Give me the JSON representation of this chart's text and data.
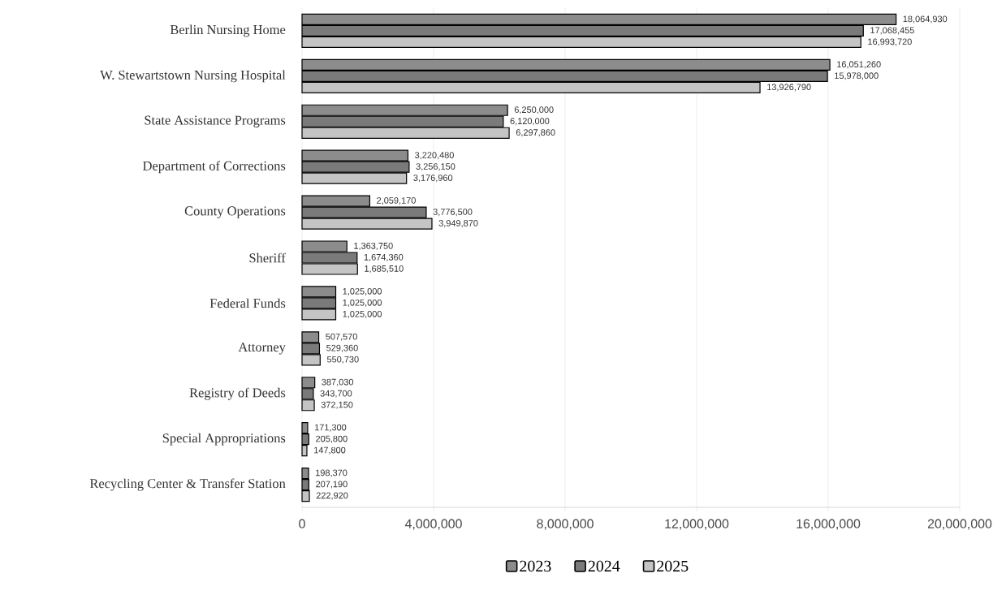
{
  "chart_data": {
    "type": "bar",
    "orientation": "horizontal",
    "categories": [
      "Berlin Nursing Home",
      "W. Stewartstown Nursing Hospital",
      "State Assistance Programs",
      "Department of Corrections",
      "County Operations",
      "Sheriff",
      "Federal Funds",
      "Attorney",
      "Registry of Deeds",
      "Special Appropriations",
      "Recycling Center & Transfer Station"
    ],
    "series": [
      {
        "name": "2023",
        "color": "#8c8c8c",
        "values": [
          18064930,
          16051260,
          6250000,
          3220480,
          2059170,
          1363750,
          1025000,
          507570,
          387030,
          171300,
          198370
        ],
        "value_labels": [
          "18,064,930",
          "16,051,260",
          "6,250,000",
          "3,220,480",
          "2,059,170",
          "1,363,750",
          "1,025,000",
          "507,570",
          "387,030",
          "171,300",
          "198,370"
        ]
      },
      {
        "name": "2024",
        "color": "#7a7a7a",
        "values": [
          17068455,
          15978000,
          6120000,
          3256150,
          3776500,
          1674360,
          1025000,
          529360,
          343700,
          205800,
          207190
        ],
        "value_labels": [
          "17,068,455",
          "15,978,000",
          "6,120,000",
          "3,256,150",
          "3,776,500",
          "1,674,360",
          "1,025,000",
          "529,360",
          "343,700",
          "205,800",
          "207,190"
        ]
      },
      {
        "name": "2025",
        "color": "#c4c4c4",
        "values": [
          16993720,
          13926790,
          6297860,
          3176960,
          3949870,
          1685510,
          1025000,
          550730,
          372150,
          147800,
          222920
        ],
        "value_labels": [
          "16,993,720",
          "13,926,790",
          "6,297,860",
          "3,176,960",
          "3,949,870",
          "1,685,510",
          "1,025,000",
          "550,730",
          "372,150",
          "147,800",
          "222,920"
        ]
      }
    ],
    "xlim": [
      0,
      20000000
    ],
    "xticks": [
      0,
      {
        "value": 4000000,
        "label": "4,000,000"
      },
      {
        "value": 8000000,
        "label": "8,000,000"
      },
      {
        "value": 12000000,
        "label": "12,000,000"
      },
      {
        "value": 16000000,
        "label": "16,000,000"
      },
      {
        "value": 20000000,
        "label": "20,000,000"
      }
    ],
    "grid": "x",
    "legend": "bottom"
  }
}
